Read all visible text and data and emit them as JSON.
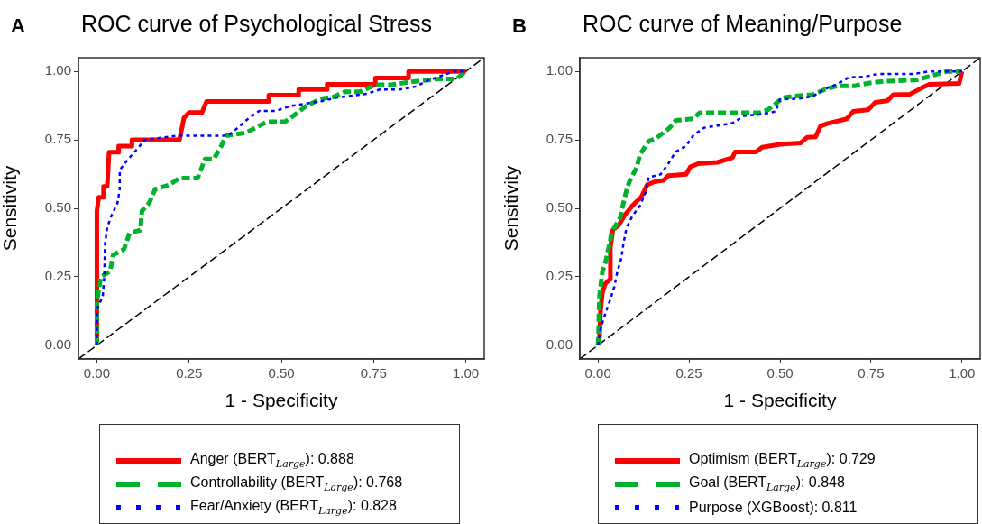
{
  "chart_data": [
    {
      "type": "line",
      "title": "ROC curve of Psychological Stress",
      "xlabel": "1 - Specificity",
      "ylabel": "Sensitivity",
      "annotations": [
        "A"
      ],
      "xlim": [
        -0.05,
        1.05
      ],
      "ylim": [
        -0.05,
        1.05
      ],
      "xticks": [
        {
          "value": 0,
          "label": "0.00"
        },
        {
          "value": 0.25,
          "label": "0.25"
        },
        {
          "value": 0.5,
          "label": "0.50"
        },
        {
          "value": 0.75,
          "label": "0.75"
        },
        {
          "value": 1,
          "label": "1.00"
        }
      ],
      "yticks": [
        {
          "value": 0,
          "label": "0.00"
        },
        {
          "value": 0.25,
          "label": "0.25"
        },
        {
          "value": 0.5,
          "label": "0.50"
        },
        {
          "value": 0.75,
          "label": "0.75"
        },
        {
          "value": 1,
          "label": "1.00"
        }
      ],
      "grid": false,
      "legend": "bottom",
      "marker": "none",
      "series": [
        {
          "name": "Anger (BERT$_{Large}$): 0.888",
          "color": "#ff0000",
          "line_style": "solid",
          "x": [
            0,
            0,
            0.005,
            0.018,
            0.018,
            0.028,
            0.033,
            0.059,
            0.059,
            0.095,
            0.095,
            0.224,
            0.236,
            0.25,
            0.285,
            0.297,
            0.466,
            0.466,
            0.547,
            0.547,
            0.624,
            0.624,
            0.755,
            0.755,
            0.845,
            0.845,
            1
          ],
          "values": [
            0,
            0.49,
            0.54,
            0.54,
            0.58,
            0.58,
            0.705,
            0.705,
            0.727,
            0.727,
            0.75,
            0.75,
            0.83,
            0.85,
            0.85,
            0.89,
            0.89,
            0.913,
            0.913,
            0.934,
            0.934,
            0.953,
            0.953,
            0.976,
            0.976,
            1,
            1
          ]
        },
        {
          "name": "Controllability (BERT$_{Large}$): 0.768",
          "color": "#00b32c",
          "line_style": "dashed",
          "x": [
            0,
            0,
            0.011,
            0.036,
            0.044,
            0.073,
            0.089,
            0.118,
            0.122,
            0.142,
            0.158,
            0.195,
            0.224,
            0.273,
            0.293,
            0.317,
            0.338,
            0.35,
            0.404,
            0.424,
            0.461,
            0.51,
            0.542,
            0.567,
            0.608,
            0.641,
            0.673,
            0.714,
            0.755,
            0.797,
            0.853,
            0.886,
            0.935,
            0.975,
            1
          ],
          "values": [
            0,
            0.16,
            0.25,
            0.27,
            0.33,
            0.35,
            0.41,
            0.42,
            0.49,
            0.52,
            0.57,
            0.585,
            0.61,
            0.61,
            0.68,
            0.68,
            0.73,
            0.765,
            0.776,
            0.79,
            0.816,
            0.816,
            0.847,
            0.874,
            0.9,
            0.907,
            0.926,
            0.926,
            0.951,
            0.951,
            0.962,
            0.967,
            0.973,
            0.973,
            1
          ]
        },
        {
          "name": "Fear/Anxiety (BERT$_{Large}$): 0.828",
          "color": "#0000ff",
          "line_style": "dotted",
          "x": [
            0,
            0,
            0.016,
            0.02,
            0.022,
            0.028,
            0.04,
            0.056,
            0.062,
            0.062,
            0.085,
            0.105,
            0.13,
            0.216,
            0.31,
            0.355,
            0.383,
            0.408,
            0.44,
            0.485,
            0.526,
            0.608,
            0.649,
            0.73,
            0.767,
            0.82,
            0.865,
            0.894,
            0.967,
            1
          ],
          "values": [
            0,
            0.13,
            0.18,
            0.25,
            0.37,
            0.43,
            0.475,
            0.52,
            0.57,
            0.64,
            0.68,
            0.71,
            0.75,
            0.765,
            0.765,
            0.765,
            0.795,
            0.825,
            0.856,
            0.856,
            0.874,
            0.891,
            0.904,
            0.918,
            0.934,
            0.934,
            0.945,
            0.965,
            1,
            1
          ]
        },
        {
          "color": "#000000",
          "line_style": "dashed",
          "x": [
            -0.05,
            1.05
          ],
          "values": [
            -0.05,
            1.05
          ]
        }
      ]
    },
    {
      "type": "line",
      "title": "ROC curve of Meaning/Purpose",
      "xlabel": "1 - Specificity",
      "ylabel": "Sensitivity",
      "annotations": [
        "B"
      ],
      "xlim": [
        -0.05,
        1.05
      ],
      "ylim": [
        -0.05,
        1.05
      ],
      "xticks": [
        {
          "value": 0,
          "label": "0.00"
        },
        {
          "value": 0.25,
          "label": "0.25"
        },
        {
          "value": 0.5,
          "label": "0.50"
        },
        {
          "value": 0.75,
          "label": "0.75"
        },
        {
          "value": 1,
          "label": "1.00"
        }
      ],
      "yticks": [
        {
          "value": 0,
          "label": "0.00"
        },
        {
          "value": 0.25,
          "label": "0.25"
        },
        {
          "value": 0.5,
          "label": "0.50"
        },
        {
          "value": 0.75,
          "label": "0.75"
        },
        {
          "value": 1,
          "label": "1.00"
        }
      ],
      "grid": false,
      "legend": "bottom",
      "marker": "none",
      "series": [
        {
          "name": "Optimism (BERT$_{Large}$): 0.729",
          "color": "#ff0000",
          "line_style": "solid",
          "x": [
            0,
            0.004,
            0.007,
            0.012,
            0.02,
            0.033,
            0.034,
            0.041,
            0.057,
            0.074,
            0.094,
            0.119,
            0.135,
            0.156,
            0.18,
            0.193,
            0.242,
            0.254,
            0.275,
            0.328,
            0.369,
            0.377,
            0.434,
            0.451,
            0.5,
            0.557,
            0.574,
            0.598,
            0.611,
            0.631,
            0.684,
            0.701,
            0.742,
            0.762,
            0.795,
            0.811,
            0.857,
            0.893,
            0.91,
            0.992,
            1
          ],
          "values": [
            0,
            0.027,
            0.126,
            0.192,
            0.225,
            0.241,
            0.356,
            0.422,
            0.438,
            0.476,
            0.509,
            0.542,
            0.586,
            0.597,
            0.602,
            0.619,
            0.624,
            0.652,
            0.663,
            0.668,
            0.685,
            0.706,
            0.706,
            0.723,
            0.734,
            0.739,
            0.759,
            0.761,
            0.8,
            0.81,
            0.827,
            0.854,
            0.86,
            0.887,
            0.893,
            0.915,
            0.917,
            0.942,
            0.953,
            0.956,
            1
          ]
        },
        {
          "name": "Goal (BERT$_{Large}$): 0.848",
          "color": "#00b32c",
          "line_style": "dashed",
          "x": [
            0,
            0.002,
            0.004,
            0.012,
            0.02,
            0.033,
            0.037,
            0.061,
            0.066,
            0.078,
            0.086,
            0.107,
            0.115,
            0.139,
            0.16,
            0.197,
            0.213,
            0.262,
            0.279,
            0.385,
            0.443,
            0.467,
            0.508,
            0.533,
            0.59,
            0.623,
            0.656,
            0.705,
            0.746,
            0.787,
            0.877,
            0.922,
            0.959,
            1
          ],
          "values": [
            0,
            0.071,
            0.181,
            0.268,
            0.301,
            0.378,
            0.411,
            0.466,
            0.498,
            0.564,
            0.597,
            0.652,
            0.696,
            0.745,
            0.756,
            0.794,
            0.821,
            0.827,
            0.849,
            0.849,
            0.849,
            0.86,
            0.904,
            0.909,
            0.915,
            0.934,
            0.947,
            0.947,
            0.958,
            0.964,
            0.969,
            0.986,
            1,
            1
          ]
        },
        {
          "name": "Purpose (XGBoost): 0.811",
          "color": "#0000ff",
          "line_style": "dotted",
          "x": [
            0,
            0.008,
            0.02,
            0.033,
            0.045,
            0.053,
            0.064,
            0.07,
            0.078,
            0.094,
            0.115,
            0.131,
            0.139,
            0.172,
            0.193,
            0.213,
            0.242,
            0.262,
            0.291,
            0.369,
            0.402,
            0.447,
            0.488,
            0.5,
            0.549,
            0.59,
            0.623,
            0.656,
            0.689,
            0.73,
            0.77,
            0.82,
            0.869,
            0.91,
            1
          ],
          "values": [
            0,
            0.066,
            0.115,
            0.164,
            0.214,
            0.268,
            0.318,
            0.372,
            0.427,
            0.471,
            0.509,
            0.559,
            0.613,
            0.624,
            0.663,
            0.706,
            0.728,
            0.767,
            0.794,
            0.811,
            0.838,
            0.843,
            0.854,
            0.898,
            0.9,
            0.909,
            0.936,
            0.953,
            0.978,
            0.98,
            0.991,
            0.991,
            0.991,
            1,
            1
          ]
        },
        {
          "color": "#000000",
          "line_style": "dashed",
          "x": [
            -0.05,
            1.05
          ],
          "values": [
            -0.05,
            1.05
          ]
        }
      ]
    }
  ]
}
